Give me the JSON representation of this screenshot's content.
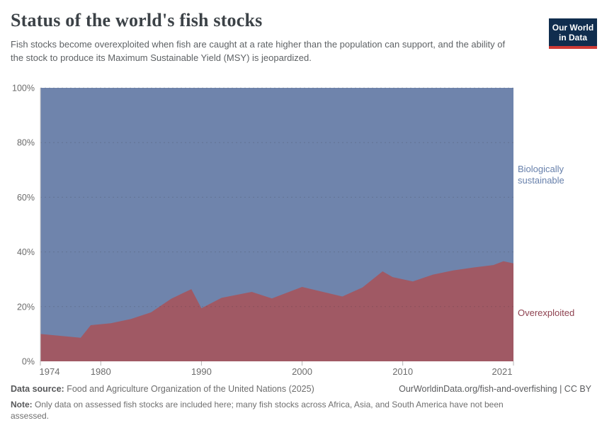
{
  "header": {
    "title": "Status of the world's fish stocks",
    "subtitle": "Fish stocks become overexploited when fish are caught at a rate higher than the population can support, and the ability of the stock to produce its Maximum Sustainable Yield (MSY) is jeopardized.",
    "logo": {
      "line1": "Our World",
      "line2": "in Data",
      "bg_color": "#102d4e",
      "accent_color": "#cf3a35"
    }
  },
  "chart_data": {
    "type": "area",
    "stacked": true,
    "title": "Status of the world's fish stocks",
    "xlabel": "",
    "ylabel": "",
    "ylim": [
      0,
      100
    ],
    "y_unit": "%",
    "grid": {
      "show": true,
      "style": "dashed-horizontal"
    },
    "legend_position": "right",
    "x": [
      1974,
      1978,
      1979,
      1981,
      1983,
      1985,
      1987,
      1989,
      1990,
      1992,
      1995,
      1997,
      2000,
      2004,
      2006,
      2008,
      2009,
      2011,
      2013,
      2015,
      2017,
      2019,
      2020,
      2021
    ],
    "series": [
      {
        "name": "Overexploited",
        "color": "#a05964",
        "label_color": "#8e4250",
        "values": [
          10.0,
          8.6,
          13.2,
          13.9,
          15.5,
          17.9,
          22.9,
          26.4,
          19.4,
          23.2,
          25.4,
          23.0,
          27.2,
          23.7,
          27.0,
          32.9,
          30.8,
          29.2,
          31.7,
          33.2,
          34.3,
          35.2,
          36.6,
          35.8
        ]
      },
      {
        "name": "Biologically sustainable",
        "color": "#6f84ac",
        "label_color": "#6780ab",
        "values": [
          90.0,
          91.4,
          86.8,
          86.1,
          84.5,
          82.1,
          77.1,
          73.6,
          80.6,
          76.8,
          74.6,
          77.0,
          72.8,
          76.3,
          73.0,
          67.1,
          69.2,
          70.8,
          68.3,
          66.8,
          65.7,
          64.8,
          63.4,
          64.2
        ]
      }
    ],
    "yticks": [
      {
        "v": 0,
        "label": "0%"
      },
      {
        "v": 20,
        "label": "20%"
      },
      {
        "v": 40,
        "label": "40%"
      },
      {
        "v": 60,
        "label": "60%"
      },
      {
        "v": 80,
        "label": "80%"
      },
      {
        "v": 100,
        "label": "100%"
      }
    ],
    "xticks": [
      {
        "v": 1974,
        "label": "1974"
      },
      {
        "v": 1980,
        "label": "1980"
      },
      {
        "v": 1990,
        "label": "1990"
      },
      {
        "v": 2000,
        "label": "2000"
      },
      {
        "v": 2010,
        "label": "2010"
      },
      {
        "v": 2021,
        "label": "2021"
      }
    ]
  },
  "footer": {
    "source_label": "Data source:",
    "source_value": "Food and Agriculture Organization of the United Nations (2025)",
    "link": "OurWorldinData.org/fish-and-overfishing | CC BY",
    "note_label": "Note:",
    "note_value": "Only data on assessed fish stocks are included here; many fish stocks across Africa, Asia, and South America have not been assessed."
  }
}
